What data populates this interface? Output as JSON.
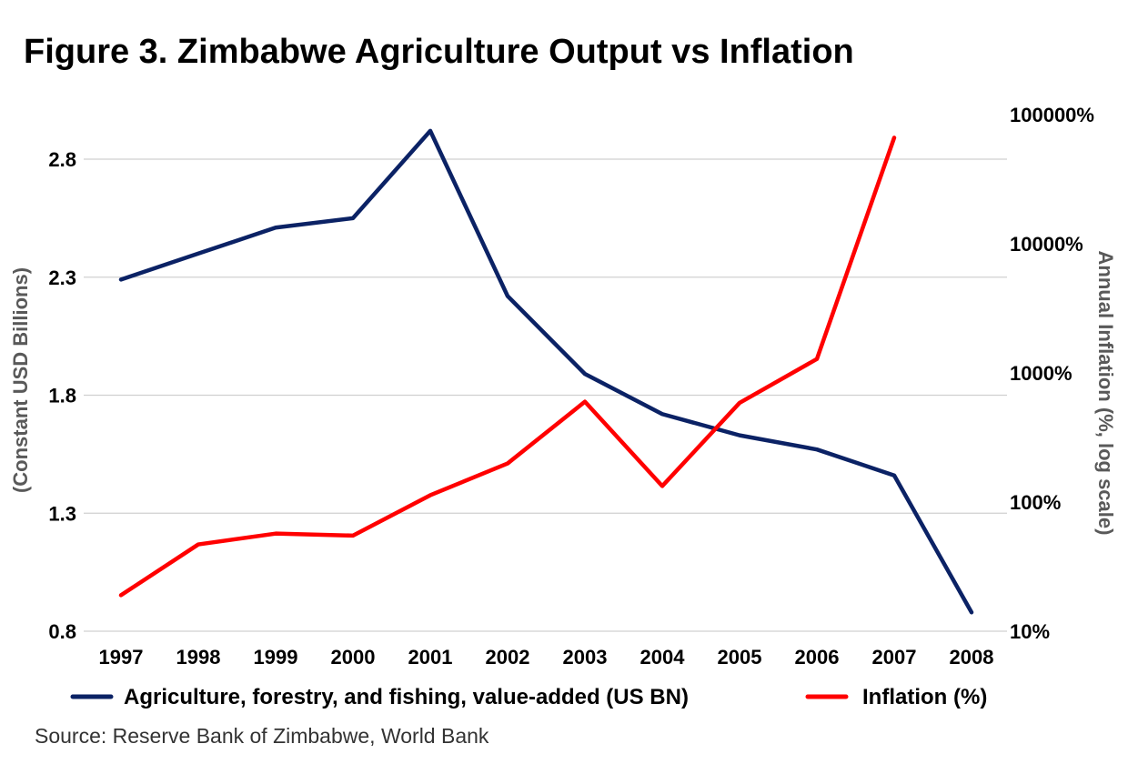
{
  "chart_data": {
    "type": "line",
    "title": "Figure 3. Zimbabwe Agriculture Output vs Inflation",
    "x": [
      "1997",
      "1998",
      "1999",
      "2000",
      "2001",
      "2002",
      "2003",
      "2004",
      "2005",
      "2006",
      "2007",
      "2008"
    ],
    "left_axis": {
      "label": "(Constant USD Billions)",
      "ticks": [
        0.8,
        1.3,
        1.8,
        2.3,
        2.8
      ],
      "tick_labels": [
        "0.8",
        "1.3",
        "1.8",
        "2.3",
        "2.8"
      ],
      "ylim": [
        0.8,
        2.8
      ],
      "grid": true
    },
    "right_axis": {
      "label": "Annual Inflation (%, log scale)",
      "scale": "log",
      "ticks": [
        10,
        100,
        1000,
        10000,
        100000
      ],
      "tick_labels": [
        "10%",
        "100%",
        "1000%",
        "10000%",
        "100000%"
      ],
      "ylim": [
        10,
        100000
      ]
    },
    "series": [
      {
        "name": "Agriculture, forestry, and fishing, value-added (US BN)",
        "axis": "left",
        "color": "#0b2265",
        "values": [
          2.29,
          2.4,
          2.51,
          2.55,
          2.92,
          2.22,
          1.89,
          1.72,
          1.63,
          1.57,
          1.46,
          0.88
        ]
      },
      {
        "name": "Inflation (%)",
        "axis": "right",
        "color": "#ff0000",
        "values": [
          19,
          47,
          57,
          55,
          113,
          199,
          599,
          133,
          586,
          1281,
          null,
          null
        ]
      }
    ],
    "extra_points": {
      "inflation_2007": 66212
    },
    "legend_position": "bottom",
    "source": "Source: Reserve Bank of Zimbabwe, World Bank"
  }
}
